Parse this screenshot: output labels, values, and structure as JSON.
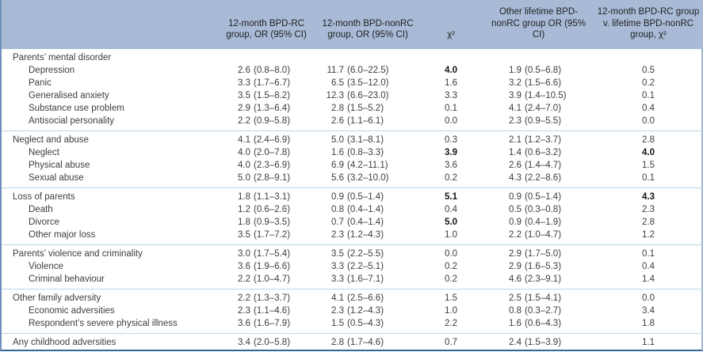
{
  "colors": {
    "header_bg": "#a8bad6",
    "rule_light": "#b9d6e7",
    "border_left": "#6e90ba",
    "border_right": "#9cb8d8",
    "border_bottom": "#34679a"
  },
  "table": {
    "columns": [
      {
        "label": ""
      },
      {
        "label": "12-month BPD-RC group, OR (95% CI)"
      },
      {
        "label": "12-month BPD-nonRC group, OR (95% CI)"
      },
      {
        "label": "χ²"
      },
      {
        "label": "Other lifetime BPD-nonRC group OR (95% CI)"
      },
      {
        "label": "12-month BPD-RC group v. lifetime BPD-nonRC group, χ²"
      }
    ],
    "sections": [
      {
        "rows": [
          {
            "label": "Parents’ mental disorder",
            "indent": false,
            "or1": "",
            "ci1": "",
            "or2": "",
            "ci2": "",
            "chi1": "",
            "chi1_bold": false,
            "or3": "",
            "ci3": "",
            "chi2": "",
            "chi2_bold": false
          },
          {
            "label": "Depression",
            "indent": true,
            "or1": "2.6",
            "ci1": "(0.8–8.0)",
            "or2": "11.7",
            "ci2": "(6.0–22.5)",
            "chi1": "4.0",
            "chi1_bold": true,
            "or3": "1.9",
            "ci3": "(0.5–6.8)",
            "chi2": "0.5",
            "chi2_bold": false
          },
          {
            "label": "Panic",
            "indent": true,
            "or1": "3.3",
            "ci1": "(1.7–6.7)",
            "or2": "6.5",
            "ci2": "(3.5–12.0)",
            "chi1": "1.6",
            "chi1_bold": false,
            "or3": "3.2",
            "ci3": "(1.5–6.6)",
            "chi2": "0.2",
            "chi2_bold": false
          },
          {
            "label": "Generalised anxiety",
            "indent": true,
            "or1": "3.5",
            "ci1": "(1.5–8.2)",
            "or2": "12.3",
            "ci2": "(6.6–23.0)",
            "chi1": "3.3",
            "chi1_bold": false,
            "or3": "3.9",
            "ci3": "(1.4–10.5)",
            "chi2": "0.1",
            "chi2_bold": false
          },
          {
            "label": "Substance use problem",
            "indent": true,
            "or1": "2.9",
            "ci1": "(1.3–6.4)",
            "or2": "2.8",
            "ci2": "(1.5–5.2)",
            "chi1": "0.1",
            "chi1_bold": false,
            "or3": "4.1",
            "ci3": "(2.4–7.0)",
            "chi2": "0.4",
            "chi2_bold": false
          },
          {
            "label": "Antisocial personality",
            "indent": true,
            "or1": "2.2",
            "ci1": "(0.9–5.8)",
            "or2": "2.6",
            "ci2": "(1.1–6.1)",
            "chi1": "0.0",
            "chi1_bold": false,
            "or3": "2.3",
            "ci3": "(0.9–5.5)",
            "chi2": "0.0",
            "chi2_bold": false
          }
        ]
      },
      {
        "rows": [
          {
            "label": "Neglect and abuse",
            "indent": false,
            "or1": "4.1",
            "ci1": "(2.4–6.9)",
            "or2": "5.0",
            "ci2": "(3.1–8.1)",
            "chi1": "0.3",
            "chi1_bold": false,
            "or3": "2.1",
            "ci3": "(1.2–3.7)",
            "chi2": "2.8",
            "chi2_bold": false
          },
          {
            "label": "Neglect",
            "indent": true,
            "or1": "4.0",
            "ci1": "(2.0–7.8)",
            "or2": "1.6",
            "ci2": "(0.8–3.3)",
            "chi1": "3.9",
            "chi1_bold": true,
            "or3": "1.4",
            "ci3": "(0.6–3.2)",
            "chi2": "4.0",
            "chi2_bold": true
          },
          {
            "label": "Physical abuse",
            "indent": true,
            "or1": "4.0",
            "ci1": "(2.3–6.9)",
            "or2": "6.9",
            "ci2": "(4.2–11.1)",
            "chi1": "3.6",
            "chi1_bold": false,
            "or3": "2.6",
            "ci3": "(1.4–4.7)",
            "chi2": "1.5",
            "chi2_bold": false
          },
          {
            "label": "Sexual abuse",
            "indent": true,
            "or1": "5.0",
            "ci1": "(2.8–9.1)",
            "or2": "5.6",
            "ci2": "(3.2–10.0)",
            "chi1": "0.2",
            "chi1_bold": false,
            "or3": "4.3",
            "ci3": "(2.2–8.6)",
            "chi2": "0.1",
            "chi2_bold": false
          }
        ]
      },
      {
        "rows": [
          {
            "label": "Loss of parents",
            "indent": false,
            "or1": "1.8",
            "ci1": "(1.1–3.1)",
            "or2": "0.9",
            "ci2": "(0.5–1.4)",
            "chi1": "5.1",
            "chi1_bold": true,
            "or3": "0.9",
            "ci3": "(0.5–1.4)",
            "chi2": "4.3",
            "chi2_bold": true
          },
          {
            "label": "Death",
            "indent": true,
            "or1": "1.2",
            "ci1": "(0.6–2.6)",
            "or2": "0.8",
            "ci2": "(0.4–1.4)",
            "chi1": "0.4",
            "chi1_bold": false,
            "or3": "0.5",
            "ci3": "(0.3–0.8)",
            "chi2": "2.3",
            "chi2_bold": false
          },
          {
            "label": "Divorce",
            "indent": true,
            "or1": "1.8",
            "ci1": "(0.9–3.5)",
            "or2": "0.7",
            "ci2": "(0.4–1.4)",
            "chi1": "5.0",
            "chi1_bold": true,
            "or3": "0.9",
            "ci3": "(0.4–1.9)",
            "chi2": "2.8",
            "chi2_bold": false
          },
          {
            "label": "Other major loss",
            "indent": true,
            "or1": "3.5",
            "ci1": "(1.7–7.2)",
            "or2": "2.3",
            "ci2": "(1.2–4.3)",
            "chi1": "1.0",
            "chi1_bold": false,
            "or3": "2.2",
            "ci3": "(1.0–4.7)",
            "chi2": "1.2",
            "chi2_bold": false
          }
        ]
      },
      {
        "rows": [
          {
            "label": "Parents’ violence and criminality",
            "indent": false,
            "or1": "3.0",
            "ci1": "(1.7–5.4)",
            "or2": "3.5",
            "ci2": "(2.2–5.5)",
            "chi1": "0.0",
            "chi1_bold": false,
            "or3": "2.9",
            "ci3": "(1.7–5.0)",
            "chi2": "0.1",
            "chi2_bold": false
          },
          {
            "label": "Violence",
            "indent": true,
            "or1": "3.6",
            "ci1": "(1.9–6.6)",
            "or2": "3.3",
            "ci2": "(2.2–5.1)",
            "chi1": "0.2",
            "chi1_bold": false,
            "or3": "2.9",
            "ci3": "(1.6–5.3)",
            "chi2": "0.4",
            "chi2_bold": false
          },
          {
            "label": "Criminal behaviour",
            "indent": true,
            "or1": "2.2",
            "ci1": "(1.0–4.7)",
            "or2": "3.3",
            "ci2": "(1.6–7.1)",
            "chi1": "0.2",
            "chi1_bold": false,
            "or3": "4.6",
            "ci3": "(2.3–9.1)",
            "chi2": "1.4",
            "chi2_bold": false
          }
        ]
      },
      {
        "rows": [
          {
            "label": "Other family adversity",
            "indent": false,
            "or1": "2.2",
            "ci1": "(1.3–3.7)",
            "or2": "4.1",
            "ci2": "(2.5–6.6)",
            "chi1": "1.5",
            "chi1_bold": false,
            "or3": "2.5",
            "ci3": "(1.5–4.1)",
            "chi2": "0.0",
            "chi2_bold": false
          },
          {
            "label": "Economic adversities",
            "indent": true,
            "or1": "2.3",
            "ci1": "(1.1–4.6)",
            "or2": "2.3",
            "ci2": "(1.2–4.3)",
            "chi1": "1.0",
            "chi1_bold": false,
            "or3": "0.8",
            "ci3": "(0.3–2.7)",
            "chi2": "3.4",
            "chi2_bold": false
          },
          {
            "label": "Respondent’s severe physical illness",
            "indent": true,
            "or1": "3.6",
            "ci1": "(1.6–7.9)",
            "or2": "1.5",
            "ci2": "(0.5–4.3)",
            "chi1": "2.2",
            "chi1_bold": false,
            "or3": "1.6",
            "ci3": "(0.6–4.3)",
            "chi2": "1.8",
            "chi2_bold": false
          }
        ]
      },
      {
        "rows": [
          {
            "label": "Any childhood adversities",
            "indent": false,
            "or1": "3.4",
            "ci1": "(2.0–5.8)",
            "or2": "2.8",
            "ci2": "(1.7–4.6)",
            "chi1": "0.7",
            "chi1_bold": false,
            "or3": "2.4",
            "ci3": "(1.5–3.9)",
            "chi2": "1.1",
            "chi2_bold": false
          }
        ]
      }
    ]
  }
}
